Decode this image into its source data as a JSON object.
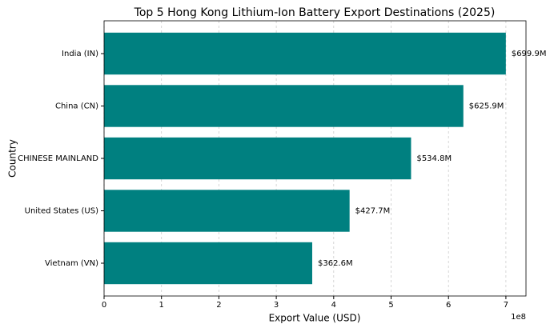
{
  "chart_data": {
    "type": "barh",
    "title": "Top 5 Hong Kong Lithium-Ion Battery Export Destinations (2025)",
    "x_label": "Export Value (USD)",
    "y_label": "Country",
    "x_offset_label": "1e8",
    "categories": [
      "India (IN)",
      "China (CN)",
      "CHINESE MAINLAND",
      "United States (US)",
      "Vietnam (VN)"
    ],
    "values": [
      699900000,
      625900000,
      534800000,
      427700000,
      362600000
    ],
    "value_labels": [
      "$699.9M",
      "$625.9M",
      "$534.8M",
      "$427.7M",
      "$362.6M"
    ],
    "color": "#008080",
    "xlim": [
      0,
      735000000
    ],
    "xticks": [
      0,
      {
        "value": 100000000,
        "label": "1"
      },
      {
        "value": 200000000,
        "label": "2"
      },
      {
        "value": 300000000,
        "label": "3"
      },
      {
        "value": 400000000,
        "label": "4"
      },
      {
        "value": 500000000,
        "label": "5"
      },
      {
        "value": 600000000,
        "label": "6"
      },
      {
        "value": 700000000,
        "label": "7"
      }
    ],
    "grid": true
  }
}
